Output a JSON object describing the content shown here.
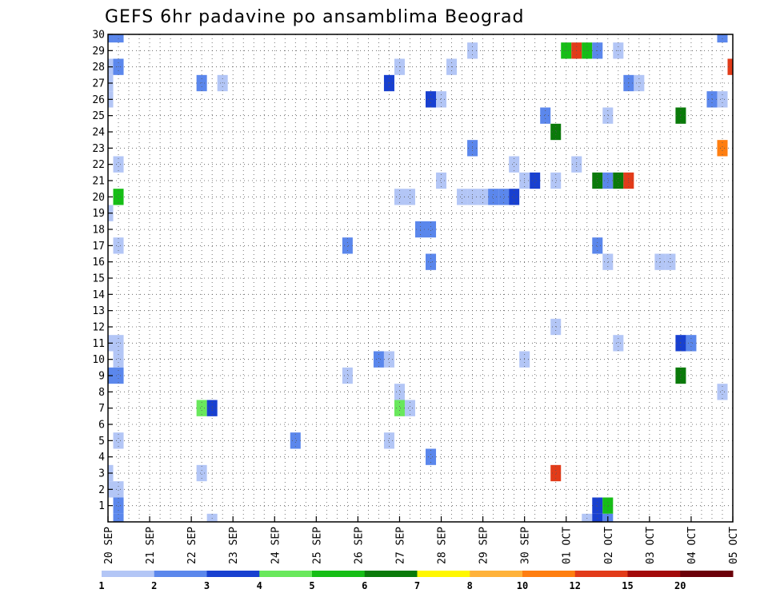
{
  "chart_data": {
    "type": "heatmap",
    "title": "GEFS 6hr padavine po ansamblima Beograd",
    "xlabel": "",
    "ylabel": "",
    "x_ticks": [
      "20 SEP",
      "21 SEP",
      "22 SEP",
      "23 SEP",
      "24 SEP",
      "25 SEP",
      "26 SEP",
      "27 SEP",
      "28 SEP",
      "29 SEP",
      "30 SEP",
      "01 OCT",
      "02 OCT",
      "03 OCT",
      "04 OCT",
      "05 OCT"
    ],
    "y_ticks": [
      "1",
      "2",
      "3",
      "4",
      "5",
      "6",
      "7",
      "8",
      "9",
      "10",
      "11",
      "12",
      "13",
      "14",
      "15",
      "16",
      "17",
      "18",
      "19",
      "20",
      "21",
      "22",
      "23",
      "24",
      "25",
      "26",
      "27",
      "28",
      "29",
      "30"
    ],
    "xlim_steps": [
      0,
      60
    ],
    "ylim": [
      0,
      30
    ],
    "grid": true,
    "legend": {
      "placement": "bottom",
      "labels": [
        "1",
        "2",
        "3",
        "4",
        "5",
        "6",
        "7",
        "8",
        "10",
        "12",
        "15",
        "20"
      ],
      "colors": [
        "#b3c6f6",
        "#5b87ec",
        "#1840d0",
        "#69e85c",
        "#16be16",
        "#0a7a0a",
        "#fff700",
        "#ffb23a",
        "#ff7e10",
        "#e23b19",
        "#a30a0a",
        "#6b0009"
      ]
    },
    "cells": [
      {
        "s": 0,
        "m": 30,
        "c": 1
      },
      {
        "s": 1,
        "m": 30,
        "c": 1
      },
      {
        "s": 59,
        "m": 30,
        "c": 1
      },
      {
        "s": 44,
        "m": 29,
        "c": 4
      },
      {
        "s": 45,
        "m": 29,
        "c": 9
      },
      {
        "s": 46,
        "m": 29,
        "c": 4
      },
      {
        "s": 47,
        "m": 29,
        "c": 1
      },
      {
        "s": 35,
        "m": 29,
        "c": 0
      },
      {
        "s": 49,
        "m": 29,
        "c": 0
      },
      {
        "s": 0,
        "m": 28,
        "c": 0
      },
      {
        "s": 1,
        "m": 28,
        "c": 1
      },
      {
        "s": 28,
        "m": 28,
        "c": 0
      },
      {
        "s": 33,
        "m": 28,
        "c": 0
      },
      {
        "s": 60,
        "m": 28,
        "c": 9
      },
      {
        "s": 0,
        "m": 27,
        "c": 0
      },
      {
        "s": 9,
        "m": 27,
        "c": 1
      },
      {
        "s": 11,
        "m": 27,
        "c": 0
      },
      {
        "s": 27,
        "m": 27,
        "c": 2
      },
      {
        "s": 50,
        "m": 27,
        "c": 1
      },
      {
        "s": 51,
        "m": 27,
        "c": 0
      },
      {
        "s": 0,
        "m": 26,
        "c": 0
      },
      {
        "s": 31,
        "m": 26,
        "c": 2
      },
      {
        "s": 32,
        "m": 26,
        "c": 0
      },
      {
        "s": 58,
        "m": 26,
        "c": 1
      },
      {
        "s": 59,
        "m": 26,
        "c": 0
      },
      {
        "s": 42,
        "m": 25,
        "c": 1
      },
      {
        "s": 48,
        "m": 25,
        "c": 0
      },
      {
        "s": 55,
        "m": 25,
        "c": 5
      },
      {
        "s": 43,
        "m": 24,
        "c": 5
      },
      {
        "s": 35,
        "m": 23,
        "c": 1
      },
      {
        "s": 59,
        "m": 23,
        "c": 8
      },
      {
        "s": 1,
        "m": 22,
        "c": 0
      },
      {
        "s": 39,
        "m": 22,
        "c": 0
      },
      {
        "s": 45,
        "m": 22,
        "c": 0
      },
      {
        "s": 32,
        "m": 21,
        "c": 0
      },
      {
        "s": 40,
        "m": 21,
        "c": 0
      },
      {
        "s": 41,
        "m": 21,
        "c": 2
      },
      {
        "s": 43,
        "m": 21,
        "c": 0
      },
      {
        "s": 47,
        "m": 21,
        "c": 5
      },
      {
        "s": 48,
        "m": 21,
        "c": 1
      },
      {
        "s": 49,
        "m": 21,
        "c": 5
      },
      {
        "s": 50,
        "m": 21,
        "c": 9
      },
      {
        "s": 1,
        "m": 20,
        "c": 4
      },
      {
        "s": 28,
        "m": 20,
        "c": 0
      },
      {
        "s": 29,
        "m": 20,
        "c": 0
      },
      {
        "s": 34,
        "m": 20,
        "c": 0
      },
      {
        "s": 35,
        "m": 20,
        "c": 0
      },
      {
        "s": 36,
        "m": 20,
        "c": 0
      },
      {
        "s": 37,
        "m": 20,
        "c": 1
      },
      {
        "s": 38,
        "m": 20,
        "c": 1
      },
      {
        "s": 39,
        "m": 20,
        "c": 2
      },
      {
        "s": 0,
        "m": 19,
        "c": 0
      },
      {
        "s": 30,
        "m": 18,
        "c": 1
      },
      {
        "s": 31,
        "m": 18,
        "c": 1
      },
      {
        "s": 1,
        "m": 17,
        "c": 0
      },
      {
        "s": 23,
        "m": 17,
        "c": 1
      },
      {
        "s": 47,
        "m": 17,
        "c": 1
      },
      {
        "s": 31,
        "m": 16,
        "c": 1
      },
      {
        "s": 48,
        "m": 16,
        "c": 0
      },
      {
        "s": 53,
        "m": 16,
        "c": 0
      },
      {
        "s": 54,
        "m": 16,
        "c": 0
      },
      {
        "s": 43,
        "m": 12,
        "c": 0
      },
      {
        "s": 0,
        "m": 11,
        "c": 0
      },
      {
        "s": 1,
        "m": 11,
        "c": 0
      },
      {
        "s": 49,
        "m": 11,
        "c": 0
      },
      {
        "s": 55,
        "m": 11,
        "c": 2
      },
      {
        "s": 56,
        "m": 11,
        "c": 1
      },
      {
        "s": 1,
        "m": 10,
        "c": 0
      },
      {
        "s": 26,
        "m": 10,
        "c": 1
      },
      {
        "s": 27,
        "m": 10,
        "c": 0
      },
      {
        "s": 40,
        "m": 10,
        "c": 0
      },
      {
        "s": 0,
        "m": 9,
        "c": 1
      },
      {
        "s": 1,
        "m": 9,
        "c": 1
      },
      {
        "s": 23,
        "m": 9,
        "c": 0
      },
      {
        "s": 55,
        "m": 9,
        "c": 5
      },
      {
        "s": 28,
        "m": 8,
        "c": 0
      },
      {
        "s": 59,
        "m": 8,
        "c": 0
      },
      {
        "s": 9,
        "m": 7,
        "c": 3
      },
      {
        "s": 10,
        "m": 7,
        "c": 2
      },
      {
        "s": 28,
        "m": 7,
        "c": 3
      },
      {
        "s": 29,
        "m": 7,
        "c": 0
      },
      {
        "s": 1,
        "m": 5,
        "c": 0
      },
      {
        "s": 18,
        "m": 5,
        "c": 1
      },
      {
        "s": 27,
        "m": 5,
        "c": 0
      },
      {
        "s": 31,
        "m": 4,
        "c": 1
      },
      {
        "s": 0,
        "m": 3,
        "c": 0
      },
      {
        "s": 9,
        "m": 3,
        "c": 0
      },
      {
        "s": 43,
        "m": 3,
        "c": 9
      },
      {
        "s": 0,
        "m": 2,
        "c": 0
      },
      {
        "s": 1,
        "m": 2,
        "c": 0
      },
      {
        "s": 1,
        "m": 1,
        "c": 1
      },
      {
        "s": 47,
        "m": 1,
        "c": 2
      },
      {
        "s": 48,
        "m": 1,
        "c": 4
      },
      {
        "s": 1,
        "m": 0,
        "c": 1
      },
      {
        "s": 10,
        "m": 0,
        "c": 0
      },
      {
        "s": 46,
        "m": 0,
        "c": 0
      },
      {
        "s": 47,
        "m": 0,
        "c": 2
      },
      {
        "s": 48,
        "m": 0,
        "c": 1
      }
    ]
  }
}
